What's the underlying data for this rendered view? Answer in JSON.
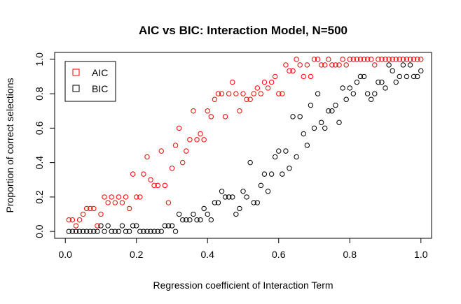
{
  "chart_data": {
    "type": "scatter",
    "title": "AIC vs BIC: Interaction Model, N=500",
    "xlabel": "Regression coefficient of Interaction Term",
    "ylabel": "Proportion of correct selections",
    "xlim": [
      -0.03,
      1.03
    ],
    "ylim": [
      -0.04,
      1.04
    ],
    "xticks": [
      0.0,
      0.2,
      0.4,
      0.6,
      0.8,
      1.0
    ],
    "xtick_labels": [
      "0.0",
      "0.2",
      "0.4",
      "0.6",
      "0.8",
      "1.0"
    ],
    "yticks": [
      0.0,
      0.2,
      0.4,
      0.6,
      0.8,
      1.0
    ],
    "ytick_labels": [
      "0.0",
      "0.2",
      "0.4",
      "0.6",
      "0.8",
      "1.0"
    ],
    "grid": false,
    "legend_position": "top-left",
    "legend": [
      {
        "label": "AIC",
        "color": "#FF0000"
      },
      {
        "label": "BIC",
        "color": "#000000"
      }
    ],
    "x": [
      0.01,
      0.02,
      0.03,
      0.04,
      0.05,
      0.06,
      0.07,
      0.08,
      0.09,
      0.1,
      0.11,
      0.12,
      0.13,
      0.14,
      0.15,
      0.16,
      0.17,
      0.18,
      0.19,
      0.2,
      0.21,
      0.22,
      0.23,
      0.24,
      0.25,
      0.26,
      0.27,
      0.28,
      0.29,
      0.3,
      0.31,
      0.32,
      0.33,
      0.34,
      0.35,
      0.36,
      0.37,
      0.38,
      0.39,
      0.4,
      0.41,
      0.42,
      0.43,
      0.44,
      0.45,
      0.46,
      0.47,
      0.48,
      0.49,
      0.5,
      0.51,
      0.52,
      0.53,
      0.54,
      0.55,
      0.56,
      0.57,
      0.58,
      0.59,
      0.6,
      0.61,
      0.62,
      0.63,
      0.64,
      0.65,
      0.66,
      0.67,
      0.68,
      0.69,
      0.7,
      0.71,
      0.72,
      0.73,
      0.74,
      0.75,
      0.76,
      0.77,
      0.78,
      0.79,
      0.8,
      0.81,
      0.82,
      0.83,
      0.84,
      0.85,
      0.86,
      0.87,
      0.88,
      0.89,
      0.9,
      0.91,
      0.92,
      0.93,
      0.94,
      0.95,
      0.96,
      0.97,
      0.98,
      0.99,
      1.0
    ],
    "series": [
      {
        "name": "AIC",
        "color": "#FF0000",
        "values": [
          0.067,
          0.067,
          0.033,
          0.067,
          0.1,
          0.133,
          0.133,
          0.133,
          0.033,
          0.1,
          0.2,
          0.167,
          0.2,
          0.167,
          0.2,
          0.167,
          0.2,
          0.133,
          0.333,
          0.2,
          0.2,
          0.333,
          0.433,
          0.3,
          0.267,
          0.267,
          0.467,
          0.267,
          0.167,
          0.367,
          0.5,
          0.6,
          0.4,
          0.467,
          0.533,
          0.7,
          0.533,
          0.567,
          0.533,
          0.7,
          0.667,
          0.767,
          0.8,
          0.8,
          0.667,
          0.8,
          0.867,
          0.8,
          0.7,
          0.8,
          0.767,
          0.767,
          0.8,
          0.833,
          0.8,
          0.867,
          0.833,
          0.867,
          0.9,
          0.8,
          0.8,
          0.967,
          0.933,
          0.933,
          1.0,
          0.967,
          0.9,
          0.967,
          0.9,
          1.0,
          1.0,
          0.967,
          0.967,
          1.0,
          0.967,
          0.967,
          0.967,
          1.0,
          0.967,
          1.0,
          1.0,
          1.0,
          1.0,
          1.0,
          1.0,
          1.0,
          0.967,
          1.0,
          1.0,
          1.0,
          1.0,
          1.0,
          1.0,
          1.0,
          1.0,
          1.0,
          1.0,
          1.0,
          1.0,
          1.0
        ]
      },
      {
        "name": "BIC",
        "color": "#000000",
        "values": [
          0.0,
          0.0,
          0.0,
          0.0,
          0.0,
          0.0,
          0.0,
          0.0,
          0.0,
          0.033,
          0.0,
          0.033,
          0.0,
          0.0,
          0.0,
          0.033,
          0.0,
          0.0,
          0.033,
          0.033,
          0.0,
          0.0,
          0.0,
          0.0,
          0.0,
          0.0,
          0.0,
          0.033,
          0.033,
          0.033,
          0.0,
          0.1,
          0.067,
          0.067,
          0.067,
          0.1,
          0.067,
          0.067,
          0.133,
          0.1,
          0.067,
          0.167,
          0.167,
          0.233,
          0.2,
          0.2,
          0.2,
          0.1,
          0.133,
          0.233,
          0.2,
          0.4,
          0.167,
          0.167,
          0.267,
          0.333,
          0.233,
          0.333,
          0.433,
          0.467,
          0.333,
          0.467,
          0.367,
          0.667,
          0.433,
          0.667,
          0.567,
          0.5,
          0.733,
          0.6,
          0.8,
          0.633,
          0.6,
          0.7,
          0.7,
          0.733,
          0.633,
          0.833,
          0.767,
          0.833,
          0.8,
          0.867,
          0.9,
          0.9,
          0.8,
          0.767,
          0.8,
          0.867,
          0.867,
          0.833,
          0.967,
          0.933,
          0.867,
          0.9,
          0.967,
          0.9,
          0.967,
          0.9,
          0.9,
          0.933
        ]
      }
    ]
  }
}
